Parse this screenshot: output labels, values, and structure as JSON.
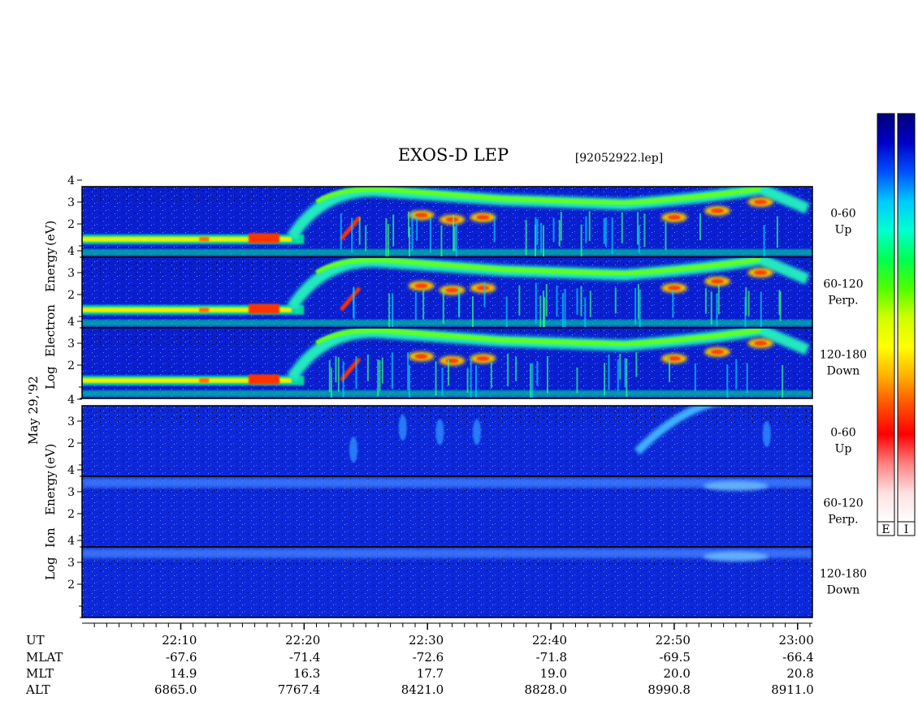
{
  "title": "EXOS-D LEP",
  "filename": "[92052922.lep]",
  "date_label": "May 29,'92",
  "groups": [
    {
      "ylabel": [
        "Log",
        "Electron",
        "Energy",
        "(eV)"
      ],
      "panels": [
        {
          "angle": "0-60",
          "dir": "Up"
        },
        {
          "angle": "60-120",
          "dir": "Perp."
        },
        {
          "angle": "120-180",
          "dir": "Down"
        }
      ]
    },
    {
      "ylabel": [
        "Log",
        "Ion",
        "Energy",
        "(eV)"
      ],
      "panels": [
        {
          "angle": "0-60",
          "dir": "Up"
        },
        {
          "angle": "60-120",
          "dir": "Perp."
        },
        {
          "angle": "120-180",
          "dir": "Down"
        }
      ]
    }
  ],
  "colorbar": {
    "labels": [
      "E",
      "I"
    ],
    "stops": [
      "#00007a",
      "#0000c8",
      "#0050ff",
      "#00c8ff",
      "#00ffd0",
      "#00ff50",
      "#50ff00",
      "#d0ff00",
      "#ffff00",
      "#ffb000",
      "#ff5000",
      "#ff0000",
      "#ff8080",
      "#ffe0e0",
      "#ffffff"
    ]
  },
  "info_rows": [
    {
      "label": "UT",
      "values": [
        "22:10",
        "22:20",
        "22:30",
        "22:40",
        "22:50",
        "23:00"
      ]
    },
    {
      "label": "MLAT",
      "values": [
        "-67.6",
        "-71.4",
        "-72.6",
        "-71.8",
        "-69.5",
        "-66.4"
      ]
    },
    {
      "label": "MLT",
      "values": [
        "14.9",
        "16.3",
        "17.7",
        "19.0",
        "20.0",
        "20.8"
      ]
    },
    {
      "label": "ALT",
      "values": [
        "6865.0",
        "7767.4",
        "8421.0",
        "8828.0",
        "8990.8",
        "8911.0"
      ]
    }
  ],
  "chart_data": {
    "type": "heatmap",
    "title": "EXOS-D LEP",
    "x_range": [
      "22:02",
      "23:01"
    ],
    "x_ticks": [
      "22:10",
      "22:20",
      "22:30",
      "22:40",
      "22:50",
      "23:00"
    ],
    "y_ticks": [
      2,
      3,
      4
    ],
    "ylabel_electron": "Log Electron Energy (eV)",
    "ylabel_ion": "Log Ion Energy (eV)",
    "series": [
      {
        "name": "Electron 0-60 Up"
      },
      {
        "name": "Electron 60-120 Perp."
      },
      {
        "name": "Electron 120-180 Down"
      },
      {
        "name": "Ion 0-60 Up"
      },
      {
        "name": "Ion 60-120 Perp."
      },
      {
        "name": "Ion 120-180 Down"
      }
    ]
  }
}
